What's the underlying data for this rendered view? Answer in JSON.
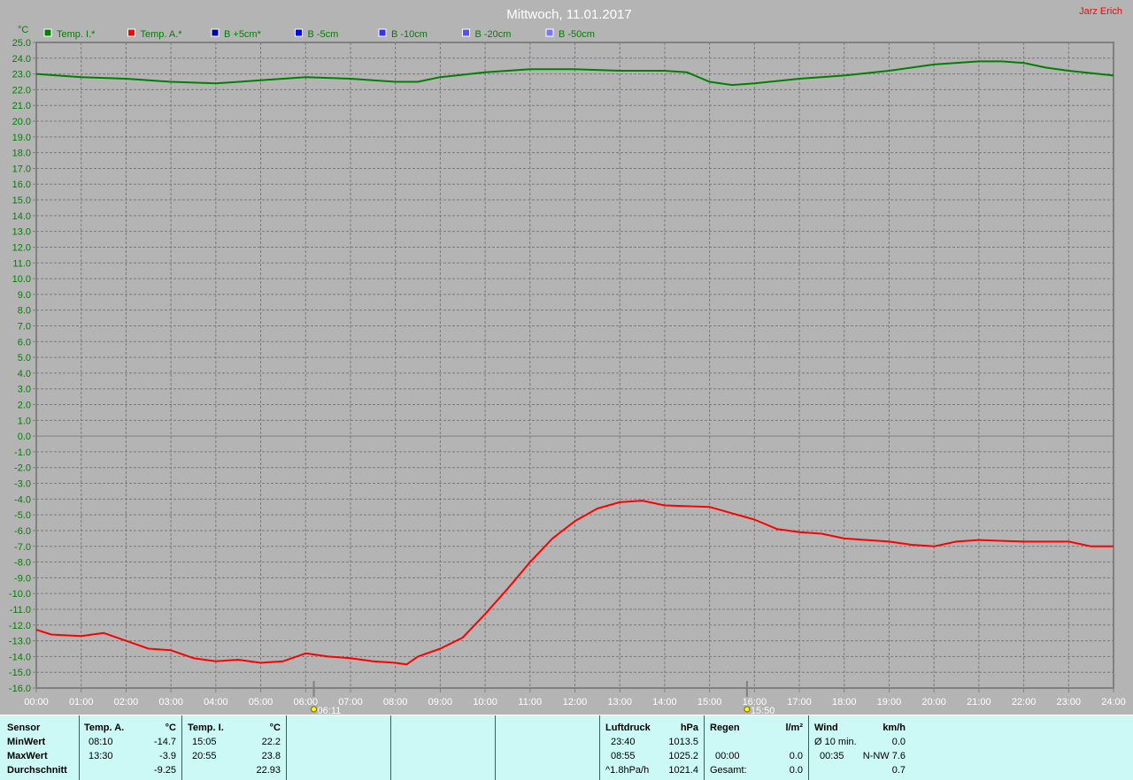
{
  "header": {
    "title": "Mittwoch, 11.01.2017",
    "author": "Jarz Erich",
    "unit": "°C"
  },
  "colors": {
    "background": "#b4b4b4",
    "temp_i": "#008000",
    "temp_a": "#ff0000",
    "axis_text": "#008000",
    "panel": "#ccf9f6"
  },
  "legend": [
    {
      "label": "Temp. I.*",
      "color": "#008000"
    },
    {
      "label": "Temp. A.*",
      "color": "#ff0000"
    },
    {
      "label": "B +5cm*",
      "color": "#0000a0"
    },
    {
      "label": "B -5cm",
      "color": "#0000ff"
    },
    {
      "label": "B -10cm",
      "color": "#3030ff"
    },
    {
      "label": "B -20cm",
      "color": "#5050ff"
    },
    {
      "label": "B -50cm",
      "color": "#7878ff"
    }
  ],
  "markers": [
    {
      "time": "06:11",
      "label": "06:11",
      "icon": "sunrise-icon"
    },
    {
      "time": "15:50",
      "label": "15:50",
      "icon": "sunset-icon"
    }
  ],
  "chart_data": {
    "type": "line",
    "title": "Mittwoch, 11.01.2017",
    "ylabel": "°C",
    "ylim": [
      -16,
      25
    ],
    "yticks_step": 1,
    "xlim": [
      "00:00",
      "24:00"
    ],
    "xticks": [
      "00:00",
      "01:00",
      "02:00",
      "03:00",
      "04:00",
      "05:00",
      "06:00",
      "07:00",
      "08:00",
      "09:00",
      "10:00",
      "11:00",
      "12:00",
      "13:00",
      "14:00",
      "15:00",
      "16:00",
      "17:00",
      "18:00",
      "19:00",
      "20:00",
      "21:00",
      "22:00",
      "23:00",
      "24:00"
    ],
    "grid": true,
    "legend_position": "top",
    "series": [
      {
        "name": "Temp. I.*",
        "color": "#008000",
        "x": [
          "00:00",
          "01:00",
          "02:00",
          "03:00",
          "04:00",
          "05:00",
          "06:00",
          "07:00",
          "08:00",
          "08:30",
          "09:00",
          "10:00",
          "11:00",
          "12:00",
          "13:00",
          "14:00",
          "14:30",
          "15:00",
          "15:30",
          "16:00",
          "17:00",
          "18:00",
          "19:00",
          "20:00",
          "21:00",
          "21:30",
          "22:00",
          "22:30",
          "23:00",
          "24:00"
        ],
        "y": [
          23.0,
          22.8,
          22.7,
          22.5,
          22.4,
          22.6,
          22.8,
          22.7,
          22.5,
          22.5,
          22.8,
          23.1,
          23.3,
          23.3,
          23.2,
          23.2,
          23.1,
          22.5,
          22.3,
          22.4,
          22.7,
          22.9,
          23.2,
          23.6,
          23.8,
          23.8,
          23.7,
          23.4,
          23.2,
          22.9
        ]
      },
      {
        "name": "Temp. A.*",
        "color": "#ff0000",
        "x": [
          "00:00",
          "00:20",
          "01:00",
          "01:30",
          "02:00",
          "02:30",
          "03:00",
          "03:30",
          "04:00",
          "04:30",
          "05:00",
          "05:30",
          "06:00",
          "06:30",
          "07:00",
          "07:30",
          "08:00",
          "08:15",
          "08:30",
          "09:00",
          "09:30",
          "10:00",
          "10:30",
          "11:00",
          "11:30",
          "12:00",
          "12:30",
          "13:00",
          "13:30",
          "14:00",
          "15:00",
          "15:30",
          "16:00",
          "16:30",
          "17:00",
          "17:30",
          "18:00",
          "19:00",
          "19:30",
          "20:00",
          "20:30",
          "21:00",
          "22:00",
          "23:00",
          "23:30",
          "24:00"
        ],
        "y": [
          -12.3,
          -12.6,
          -12.7,
          -12.5,
          -13.0,
          -13.5,
          -13.6,
          -14.1,
          -14.3,
          -14.2,
          -14.4,
          -14.3,
          -13.8,
          -14.0,
          -14.1,
          -14.3,
          -14.4,
          -14.5,
          -14.0,
          -13.5,
          -12.8,
          -11.3,
          -9.7,
          -8.0,
          -6.5,
          -5.4,
          -4.6,
          -4.2,
          -4.1,
          -4.4,
          -4.5,
          -4.9,
          -5.3,
          -5.9,
          -6.1,
          -6.2,
          -6.5,
          -6.7,
          -6.9,
          -7.0,
          -6.7,
          -6.6,
          -6.7,
          -6.7,
          -7.0,
          -7.0
        ]
      }
    ]
  },
  "stats": {
    "sensor": {
      "header": "Sensor",
      "rows": [
        "MinWert",
        "MaxWert",
        "Durchschnitt"
      ]
    },
    "temp_a": {
      "header": "Temp. A.",
      "unit": "°C",
      "min_time": "08:10",
      "min": "-14.7",
      "max_time": "13:30",
      "max": "-3.9",
      "avg": "-9.25"
    },
    "temp_i": {
      "header": "Temp. I.",
      "unit": "°C",
      "min_time": "15:05",
      "min": "22.2",
      "max_time": "20:55",
      "max": "23.8",
      "avg": "22.93"
    },
    "luftdruck": {
      "header": "Luftdruck",
      "unit": "hPa",
      "r1_label": "23:40",
      "r1": "1013.5",
      "r2_label": "08:55",
      "r2": "1025.2",
      "r3_label": "^1.8hPa/h",
      "r3": "1021.4"
    },
    "regen": {
      "header": "Regen",
      "unit": "l/m²",
      "r2_label": "00:00",
      "r2": "0.0",
      "r3_label": "Gesamt:",
      "r3": "0.0"
    },
    "wind": {
      "header": "Wind",
      "unit": "km/h",
      "r1_label": "Ø 10 min.",
      "r1": "0.0",
      "r2_label": "00:35",
      "r2": "N-NW 7.6",
      "r3": "0.7"
    }
  }
}
